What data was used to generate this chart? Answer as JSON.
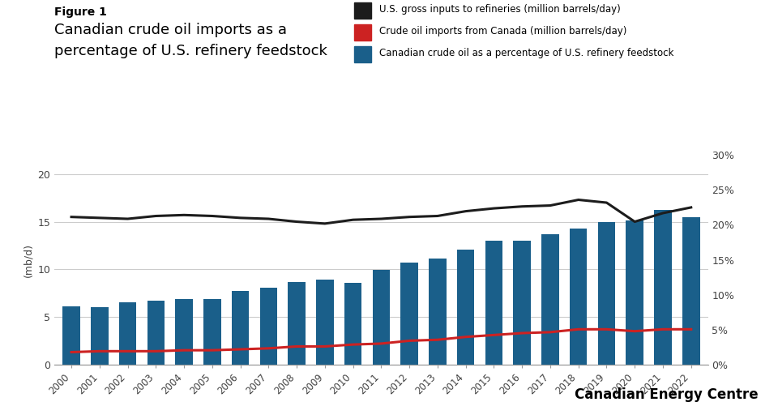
{
  "years": [
    2000,
    2001,
    2002,
    2003,
    2004,
    2005,
    2006,
    2007,
    2008,
    2009,
    2010,
    2011,
    2012,
    2013,
    2014,
    2015,
    2016,
    2017,
    2018,
    2019,
    2020,
    2021,
    2022
  ],
  "us_gross_inputs": [
    15.5,
    15.4,
    15.3,
    15.6,
    15.7,
    15.6,
    15.4,
    15.3,
    15.0,
    14.8,
    15.2,
    15.3,
    15.5,
    15.6,
    16.1,
    16.4,
    16.6,
    16.7,
    17.3,
    17.0,
    15.0,
    15.9,
    16.5
  ],
  "canada_crude_imports": [
    1.3,
    1.4,
    1.4,
    1.4,
    1.5,
    1.5,
    1.6,
    1.7,
    1.9,
    1.9,
    2.1,
    2.2,
    2.5,
    2.6,
    2.9,
    3.1,
    3.3,
    3.4,
    3.7,
    3.7,
    3.5,
    3.7,
    3.7
  ],
  "canada_pct": [
    6.1,
    6.0,
    6.5,
    6.7,
    6.9,
    6.9,
    7.7,
    8.1,
    8.7,
    8.9,
    8.6,
    9.9,
    10.7,
    11.1,
    12.1,
    13.0,
    13.0,
    13.7,
    14.3,
    15.0,
    15.1,
    16.2,
    15.5
  ],
  "bar_color": "#1a5f8a",
  "line_gross_color": "#1c1c1c",
  "line_canada_color": "#cc2222",
  "figure_label": "Figure 1",
  "title_line1": "Canadian crude oil imports as a",
  "title_line2": "percentage of U.S. refinery feedstock",
  "ylabel": "(mb/d)",
  "ylim_left": [
    0,
    22
  ],
  "yticks_left": [
    0,
    5,
    10,
    15,
    20
  ],
  "yticks_right_pct": [
    0,
    5,
    10,
    15,
    20,
    25,
    30
  ],
  "ytick_right_labels": [
    "0%",
    "5%",
    "10%",
    "15%",
    "20%",
    "25%",
    "30%"
  ],
  "legend_labels": [
    "U.S. gross inputs to refineries (million barrels/day)",
    "Crude oil imports from Canada (million barrels/day)",
    "Canadian crude oil as a percentage of U.S. refinery feedstock"
  ],
  "watermark": "Canadian Energy Centre",
  "background_color": "#ffffff",
  "grid_color": "#cccccc"
}
